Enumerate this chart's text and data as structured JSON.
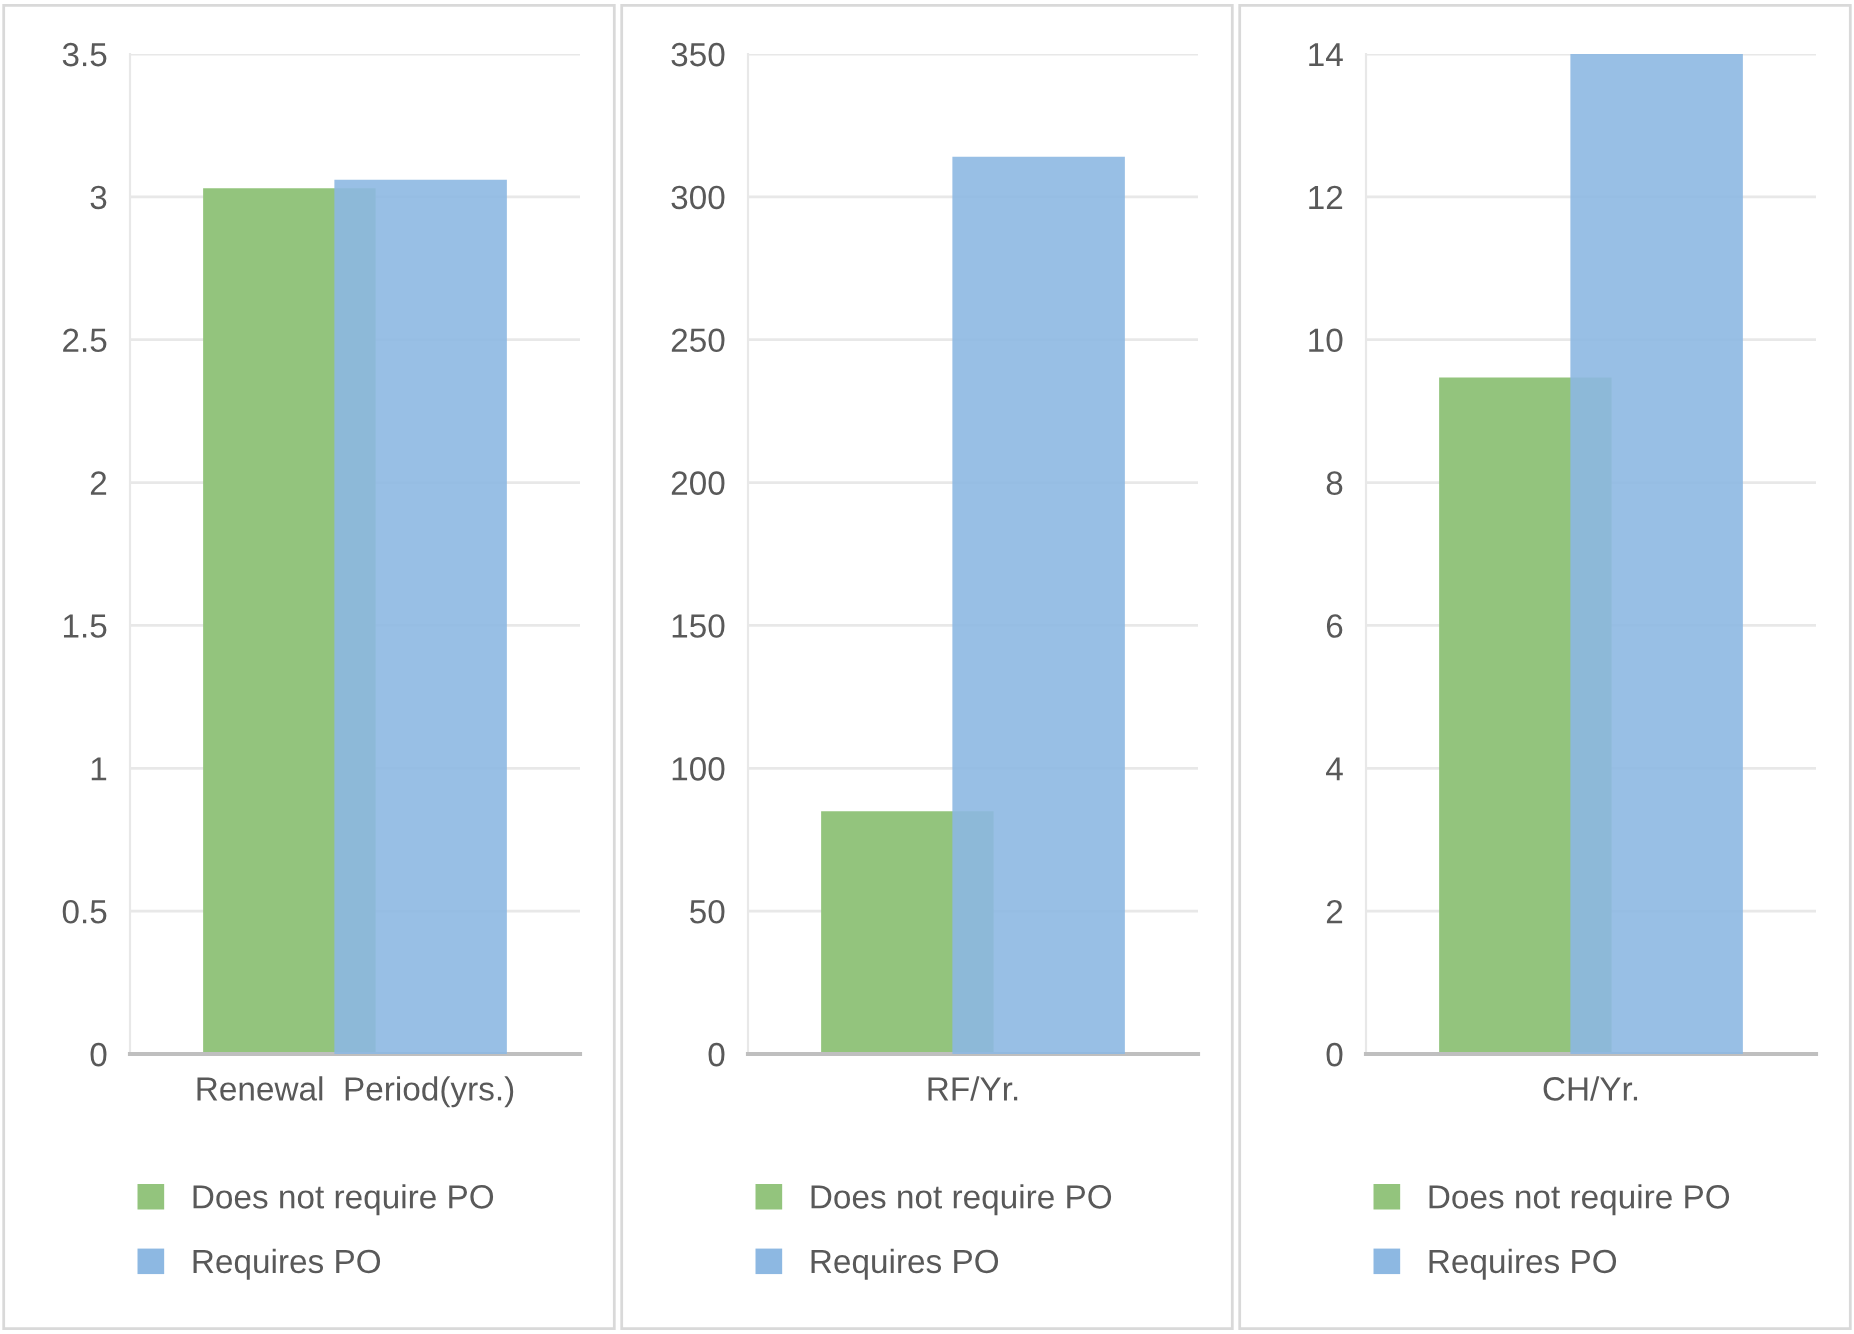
{
  "chart_data": [
    {
      "type": "bar",
      "categories": [
        "Renewal  Period(yrs.)"
      ],
      "series": [
        {
          "name": "Does not require PO",
          "color": "#93c47d",
          "values": [
            3.03
          ]
        },
        {
          "name": "Requires PO",
          "color": "#8db8e2",
          "values": [
            3.06
          ]
        }
      ],
      "ylim": [
        0,
        3.5
      ],
      "yticks": [
        0,
        0.5,
        1,
        1.5,
        2,
        2.5,
        3,
        3.5
      ],
      "grid": "y",
      "legend": "bottom"
    },
    {
      "type": "bar",
      "categories": [
        "RF/Yr."
      ],
      "series": [
        {
          "name": "Does not require PO",
          "color": "#93c47d",
          "values": [
            85
          ]
        },
        {
          "name": "Requires PO",
          "color": "#8db8e2",
          "values": [
            314
          ]
        }
      ],
      "ylim": [
        0,
        350
      ],
      "yticks": [
        0,
        50,
        100,
        150,
        200,
        250,
        300,
        350
      ],
      "grid": "y",
      "legend": "bottom"
    },
    {
      "type": "bar",
      "categories": [
        "CH/Yr."
      ],
      "series": [
        {
          "name": "Does not require PO",
          "color": "#93c47d",
          "values": [
            9.47
          ]
        },
        {
          "name": "Requires PO",
          "color": "#8db8e2",
          "values": [
            14
          ]
        }
      ],
      "ylim": [
        0,
        14
      ],
      "yticks": [
        0,
        2,
        4,
        6,
        8,
        10,
        12,
        14
      ],
      "grid": "y",
      "legend": "bottom"
    }
  ]
}
